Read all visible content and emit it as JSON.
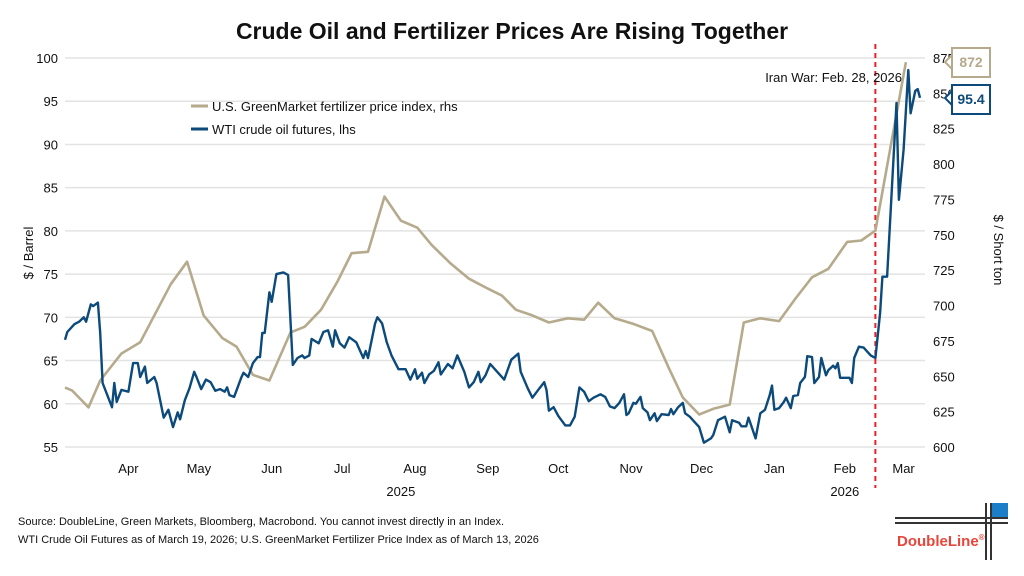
{
  "chart_data": {
    "type": "line",
    "title": "Crude Oil and Fertilizer Prices Are Rising Together",
    "ylabel_left": "$ / Barrel",
    "ylabel_right": "$ / Short ton",
    "ylim_left": [
      55,
      100
    ],
    "ylim_right": [
      600,
      875
    ],
    "yticks_left": [
      "55",
      "60",
      "65",
      "70",
      "75",
      "80",
      "85",
      "90",
      "95",
      "100"
    ],
    "yticks_right": [
      "600",
      "625",
      "650",
      "675",
      "700",
      "725",
      "750",
      "775",
      "800",
      "825",
      "850",
      "875"
    ],
    "xlim": [
      "2025-03-20",
      "2026-03-19"
    ],
    "xticks": [
      {
        "label": "Apr",
        "date": "2025-04-16"
      },
      {
        "label": "May",
        "date": "2025-05-16"
      },
      {
        "label": "Jun",
        "date": "2025-06-16"
      },
      {
        "label": "Jul",
        "date": "2025-07-16"
      },
      {
        "label": "Aug",
        "date": "2025-08-16"
      },
      {
        "label": "Sep",
        "date": "2025-09-16"
      },
      {
        "label": "Oct",
        "date": "2025-10-16"
      },
      {
        "label": "Nov",
        "date": "2025-11-16"
      },
      {
        "label": "Dec",
        "date": "2025-12-16"
      },
      {
        "label": "Jan",
        "date": "2026-01-16"
      },
      {
        "label": "Feb",
        "date": "2026-02-15"
      },
      {
        "label": "Mar",
        "date": "2026-03-12"
      }
    ],
    "year_labels": [
      {
        "label": "2025",
        "date": "2025-08-10"
      },
      {
        "label": "2026",
        "date": "2026-02-15"
      }
    ],
    "grid": true,
    "legend_position": "top-left",
    "annotation": {
      "label": "Iran War: Feb. 28, 2026",
      "date": "2026-02-28",
      "color": "#e8202a"
    },
    "series": [
      {
        "name": "U.S. GreenMarket fertilizer price index, rhs",
        "axis": "right",
        "color": "#b5aa8c",
        "last_value_label": "872",
        "x": [
          "2025-03-20",
          "2025-03-23",
          "2025-03-30",
          "2025-04-04",
          "2025-04-13",
          "2025-04-21",
          "2025-05-04",
          "2025-05-11",
          "2025-05-18",
          "2025-05-26",
          "2025-06-01",
          "2025-06-08",
          "2025-06-15",
          "2025-06-24",
          "2025-06-30",
          "2025-07-07",
          "2025-07-14",
          "2025-07-20",
          "2025-07-27",
          "2025-08-03",
          "2025-08-10",
          "2025-08-17",
          "2025-08-23",
          "2025-08-31",
          "2025-09-08",
          "2025-09-16",
          "2025-09-22",
          "2025-09-28",
          "2025-10-05",
          "2025-10-12",
          "2025-10-20",
          "2025-10-27",
          "2025-11-02",
          "2025-11-09",
          "2025-11-17",
          "2025-11-25",
          "2025-12-02",
          "2025-12-08",
          "2025-12-15",
          "2025-12-21",
          "2025-12-28",
          "2026-01-03",
          "2026-01-10",
          "2026-01-18",
          "2026-01-25",
          "2026-02-01",
          "2026-02-08",
          "2026-02-16",
          "2026-02-22",
          "2026-02-28",
          "2026-03-13"
        ],
        "y": [
          642,
          640,
          628,
          647,
          666,
          674,
          715,
          731,
          693,
          677,
          671,
          651,
          647,
          681,
          685,
          697,
          717,
          737,
          738,
          777,
          760,
          755,
          743,
          730,
          719,
          712,
          707,
          697,
          693,
          688,
          691,
          690,
          702,
          691,
          687,
          682,
          656,
          635,
          623,
          627,
          630,
          688,
          691,
          689,
          705,
          720,
          726,
          745,
          746,
          753,
          872
        ]
      },
      {
        "name": "WTI crude oil futures, lhs",
        "axis": "left",
        "color": "#0b4a7a",
        "last_value_label": "95.4",
        "x": [
          "2025-03-20",
          "2025-03-21",
          "2025-03-24",
          "2025-03-26",
          "2025-03-28",
          "2025-03-29",
          "2025-03-31",
          "2025-04-01",
          "2025-04-03",
          "2025-04-04",
          "2025-04-05",
          "2025-04-09",
          "2025-04-10",
          "2025-04-11",
          "2025-04-13",
          "2025-04-16",
          "2025-04-18",
          "2025-04-20",
          "2025-04-21",
          "2025-04-23",
          "2025-04-24",
          "2025-04-27",
          "2025-04-28",
          "2025-05-01",
          "2025-05-03",
          "2025-05-05",
          "2025-05-07",
          "2025-05-08",
          "2025-05-10",
          "2025-05-12",
          "2025-05-14",
          "2025-05-15",
          "2025-05-17",
          "2025-05-19",
          "2025-05-21",
          "2025-05-23",
          "2025-05-25",
          "2025-05-27",
          "2025-05-28",
          "2025-05-29",
          "2025-05-31",
          "2025-06-03",
          "2025-06-04",
          "2025-06-06",
          "2025-06-08",
          "2025-06-10",
          "2025-06-11",
          "2025-06-12",
          "2025-06-13",
          "2025-06-15",
          "2025-06-16",
          "2025-06-18",
          "2025-06-21",
          "2025-06-23",
          "2025-06-25",
          "2025-06-27",
          "2025-06-29",
          "2025-06-30",
          "2025-07-02",
          "2025-07-03",
          "2025-07-06",
          "2025-07-08",
          "2025-07-10",
          "2025-07-12",
          "2025-07-13",
          "2025-07-15",
          "2025-07-17",
          "2025-07-19",
          "2025-07-22",
          "2025-07-25",
          "2025-07-26",
          "2025-07-27",
          "2025-07-30",
          "2025-07-31",
          "2025-08-02",
          "2025-08-04",
          "2025-08-06",
          "2025-08-09",
          "2025-08-12",
          "2025-08-14",
          "2025-08-16",
          "2025-08-17",
          "2025-08-19",
          "2025-08-20",
          "2025-08-22",
          "2025-08-24",
          "2025-08-26",
          "2025-08-27",
          "2025-08-30",
          "2025-09-01",
          "2025-09-03",
          "2025-09-06",
          "2025-09-08",
          "2025-09-10",
          "2025-09-12",
          "2025-09-13",
          "2025-09-15",
          "2025-09-17",
          "2025-09-20",
          "2025-09-23",
          "2025-09-26",
          "2025-09-29",
          "2025-09-30",
          "2025-10-03",
          "2025-10-05",
          "2025-10-08",
          "2025-10-10",
          "2025-10-11",
          "2025-10-12",
          "2025-10-14",
          "2025-10-16",
          "2025-10-19",
          "2025-10-21",
          "2025-10-23",
          "2025-10-25",
          "2025-10-27",
          "2025-10-29",
          "2025-10-31",
          "2025-11-03",
          "2025-11-05",
          "2025-11-07",
          "2025-11-09",
          "2025-11-11",
          "2025-11-13",
          "2025-11-14",
          "2025-11-15",
          "2025-11-17",
          "2025-11-18",
          "2025-11-20",
          "2025-11-21",
          "2025-11-23",
          "2025-11-24",
          "2025-11-26",
          "2025-11-27",
          "2025-11-29",
          "2025-12-02",
          "2025-12-03",
          "2025-12-04",
          "2025-12-06",
          "2025-12-08",
          "2025-12-09",
          "2025-12-11",
          "2025-12-13",
          "2025-12-15",
          "2025-12-17",
          "2025-12-20",
          "2025-12-21",
          "2025-12-23",
          "2025-12-26",
          "2025-12-28",
          "2025-12-29",
          "2026-01-01",
          "2026-01-02",
          "2026-01-04",
          "2026-01-05",
          "2026-01-08",
          "2026-01-10",
          "2026-01-12",
          "2026-01-14",
          "2026-01-15",
          "2026-01-16",
          "2026-01-18",
          "2026-01-20",
          "2026-01-21",
          "2026-01-23",
          "2026-01-24",
          "2026-01-26",
          "2026-01-27",
          "2026-01-29",
          "2026-01-30",
          "2026-02-01",
          "2026-02-02",
          "2026-02-04",
          "2026-02-05",
          "2026-02-07",
          "2026-02-08",
          "2026-02-10",
          "2026-02-11",
          "2026-02-12",
          "2026-02-13",
          "2026-02-15",
          "2026-02-17",
          "2026-02-18",
          "2026-02-19",
          "2026-02-21",
          "2026-02-23",
          "2026-02-26",
          "2026-02-28",
          "2026-03-02",
          "2026-03-03",
          "2026-03-05",
          "2026-03-06",
          "2026-03-09",
          "2026-03-10",
          "2026-03-12",
          "2026-03-14",
          "2026-03-15",
          "2026-03-17",
          "2026-03-18",
          "2026-03-19"
        ],
        "y": [
          67.4,
          68.3,
          69.2,
          69.5,
          70.0,
          69.5,
          71.5,
          71.3,
          71.7,
          68.2,
          62.4,
          59.6,
          62.4,
          60.2,
          61.6,
          61.4,
          64.7,
          64.7,
          63.1,
          64.3,
          62.4,
          63.1,
          62.4,
          58.4,
          59.3,
          57.3,
          59.0,
          58.2,
          60.4,
          61.8,
          63.7,
          63.1,
          61.7,
          62.8,
          62.5,
          61.5,
          61.7,
          61.4,
          61.9,
          61.0,
          60.8,
          63.0,
          63.6,
          63.1,
          64.7,
          65.4,
          65.4,
          68.2,
          68.2,
          72.9,
          71.8,
          75.0,
          75.2,
          74.9,
          64.5,
          65.3,
          65.6,
          65.3,
          65.6,
          67.5,
          67.0,
          68.3,
          68.5,
          66.6,
          68.5,
          67.0,
          66.5,
          67.7,
          67.1,
          65.3,
          66.1,
          65.3,
          69.3,
          70.0,
          69.3,
          67.1,
          65.6,
          64.0,
          64.0,
          62.8,
          64.0,
          62.9,
          63.6,
          62.4,
          63.4,
          63.8,
          64.8,
          63.4,
          64.6,
          64.1,
          65.6,
          63.7,
          61.9,
          62.5,
          63.7,
          62.5,
          63.3,
          64.6,
          63.7,
          62.8,
          65.1,
          65.8,
          63.7,
          61.8,
          60.7,
          61.8,
          62.5,
          61.6,
          59.2,
          59.6,
          58.6,
          57.5,
          57.5,
          58.5,
          61.9,
          61.4,
          60.3,
          60.7,
          61.1,
          60.8,
          59.7,
          59.5,
          60.1,
          61.1,
          58.7,
          58.9,
          60.1,
          60.0,
          60.8,
          59.5,
          59.0,
          58.1,
          58.9,
          58.0,
          58.8,
          58.7,
          59.4,
          58.8,
          59.6,
          60.1,
          58.9,
          58.5,
          57.9,
          57.3,
          55.5,
          56.0,
          56.4,
          58.1,
          58.5,
          56.7,
          58.1,
          57.8,
          57.4,
          57.4,
          58.4,
          56.0,
          58.9,
          59.3,
          61.0,
          62.1,
          59.3,
          59.5,
          60.2,
          60.7,
          59.5,
          60.9,
          61.0,
          62.4,
          63.1,
          65.5,
          65.4,
          62.4,
          63.1,
          65.3,
          63.3,
          63.9,
          64.4,
          64.1,
          64.7,
          63.0,
          63.0,
          63.0,
          62.4,
          65.3,
          66.6,
          66.5,
          65.6,
          65.3,
          70.5,
          74.7,
          74.7,
          79.8,
          94.8,
          83.6,
          89.4,
          98.6,
          93.6,
          96.2,
          96.4,
          95.4
        ]
      }
    ]
  },
  "footer": {
    "source_line_1": "Source: DoubleLine, Green Markets, Bloomberg, Macrobond. You cannot invest directly in an Index.",
    "source_line_2": "WTI Crude Oil Futures as of March 19, 2026; U.S. GreenMarket Fertilizer Price Index as of March 13, 2026"
  },
  "logo": {
    "text": "DoubleLine",
    "mark": "®",
    "accent_color": "#1a7fc8",
    "text_color": "#e8463a"
  }
}
